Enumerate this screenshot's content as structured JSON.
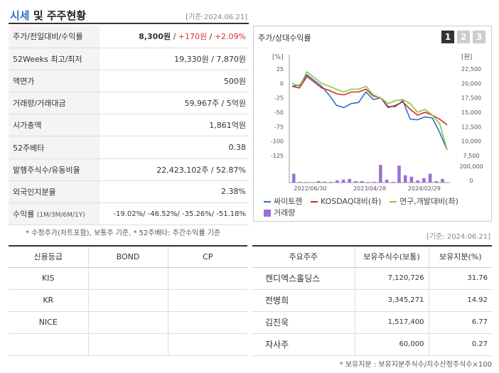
{
  "header": {
    "title_accent": "시세",
    "title_rest": " 및 주주현황",
    "date": "[기준:2024.06.21]"
  },
  "quote_rows": [
    {
      "label": "주가/전일대비/수익률",
      "price": "8,300원",
      "sep1": " / ",
      "change": "+170원",
      "sep2": " / ",
      "rate": "+2.09%"
    },
    {
      "label": "52Weeks 최고/최저",
      "value": "19,330원 / 7,870원"
    },
    {
      "label": "액면가",
      "value": "500원"
    },
    {
      "label": "거래량/거래대금",
      "value": "59,967주 / 5억원"
    },
    {
      "label": "시가총액",
      "value": "1,861억원"
    },
    {
      "label": "52주베타",
      "value": "0.38"
    },
    {
      "label": "발행주식수/유동비율",
      "value": "22,423,102주 / 52.87%"
    },
    {
      "label": "외국인지분율",
      "value": "2.38%"
    },
    {
      "label": "수익률",
      "label_small": "(1M/3M/6M/1Y)",
      "value": "-19.02%/ -46.52%/ -35.26%/ -51.18%"
    }
  ],
  "quote_note": "* 수정주가(차트포함), 보통주 기준, * 52주베타: 주간수익률 기준",
  "chart": {
    "title": "주가/상대수익률",
    "tabs": [
      "1",
      "2",
      "3"
    ],
    "left_unit": "[%]",
    "right_unit": "[원]"
  },
  "chart_data": {
    "type": "line",
    "left_ticks": [
      "25",
      "0",
      "-25",
      "-50",
      "-75",
      "-100",
      "-125"
    ],
    "right_ticks": [
      "22,500",
      "20,000",
      "17,500",
      "15,000",
      "12,500",
      "10,000",
      "7,500"
    ],
    "volume_ticks": [
      "200,000",
      "0"
    ],
    "x_ticks": [
      "2022/06/30",
      "2023/04/28",
      "2024/02/29"
    ],
    "ylim_left": [
      -125,
      25
    ],
    "series": [
      {
        "name": "싸이토젠",
        "color": "#2f6ecb",
        "values": [
          -5,
          -3,
          15,
          5,
          -5,
          -20,
          -38,
          -42,
          -35,
          -33,
          -15,
          -28,
          -25,
          -40,
          -40,
          -30,
          -62,
          -63,
          -58,
          -60,
          -85,
          -115
        ]
      },
      {
        "name": "KOSDAQ대비(좌)",
        "color": "#c8331f",
        "values": [
          -5,
          -8,
          12,
          2,
          -8,
          -12,
          -18,
          -20,
          -15,
          -15,
          -10,
          -22,
          -25,
          -42,
          -38,
          -32,
          -45,
          -55,
          -50,
          -55,
          -62,
          -72
        ]
      },
      {
        "name": "연구,개발대비(좌)",
        "color": "#8cc63f",
        "values": [
          0,
          -5,
          20,
          10,
          0,
          -5,
          -10,
          -15,
          -10,
          -10,
          -5,
          -20,
          -25,
          -35,
          -30,
          -28,
          -35,
          -50,
          -45,
          -55,
          -70,
          -115
        ]
      }
    ],
    "volume": {
      "name": "거래량",
      "color": "#9b6fd6",
      "values": [
        120000,
        10000,
        8000,
        5000,
        20000,
        12000,
        10000,
        30000,
        40000,
        50000,
        20000,
        20000,
        8000,
        10000,
        240000,
        40000,
        10000,
        230000,
        100000,
        80000,
        30000,
        60000,
        120000,
        20000,
        50000
      ]
    }
  },
  "date2": "[기준: 2024.06.21]",
  "credit": {
    "headers": [
      "신용등급",
      "BOND",
      "CP"
    ],
    "rows": [
      [
        "KIS",
        "",
        ""
      ],
      [
        "KR",
        "",
        ""
      ],
      [
        "NICE",
        "",
        ""
      ],
      [
        "",
        "",
        ""
      ]
    ]
  },
  "holders": {
    "headers": [
      "주요주주",
      "보유주식수(보통)",
      "보유지분(%)"
    ],
    "rows": [
      [
        "캔디엑스홀딩스",
        "7,120,726",
        "31.76"
      ],
      [
        "전병희",
        "3,345,271",
        "14.92"
      ],
      [
        "김진욱",
        "1,517,400",
        "6.77"
      ],
      [
        "자사주",
        "60,000",
        "0.27"
      ]
    ]
  },
  "holders_note": "* 보유지분 : 보유지분주식수/지수산정주식수×100"
}
